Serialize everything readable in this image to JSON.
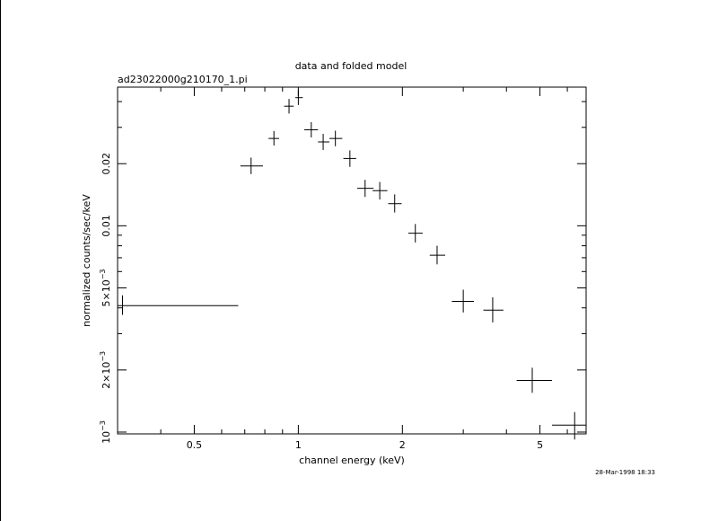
{
  "chart_data": {
    "type": "scatter",
    "title": "data and folded model",
    "subtitle": "ad23022000g210170_1.pi",
    "xlabel": "channel energy (keV)",
    "ylabel": "normalized counts/sec/keV",
    "x_scale": "log",
    "y_scale": "log",
    "xlim": [
      0.3,
      6.8
    ],
    "ylim": [
      0.00098,
      0.047
    ],
    "x_ticks": [
      {
        "value": 0.5,
        "label": "0.5"
      },
      {
        "value": 1,
        "label": "1"
      },
      {
        "value": 2,
        "label": "2"
      },
      {
        "value": 5,
        "label": "5"
      }
    ],
    "y_ticks": [
      {
        "value": 0.001,
        "base": "10",
        "exp": "−3"
      },
      {
        "value": 0.002,
        "base": "2×10",
        "exp": "−3"
      },
      {
        "value": 0.005,
        "base": "5×10",
        "exp": "−3"
      },
      {
        "value": 0.01,
        "label": "0.01"
      },
      {
        "value": 0.02,
        "label": "0.02"
      }
    ],
    "series": [
      {
        "points": [
          {
            "x": 0.31,
            "xlo": 0.3,
            "xhi": 0.67,
            "y": 0.0041,
            "ylo": 0.0037,
            "yhi": 0.0046
          },
          {
            "x": 0.73,
            "xlo": 0.68,
            "xhi": 0.79,
            "y": 0.0195,
            "ylo": 0.0178,
            "yhi": 0.0214
          },
          {
            "x": 0.85,
            "xlo": 0.82,
            "xhi": 0.88,
            "y": 0.0265,
            "ylo": 0.0245,
            "yhi": 0.0288
          },
          {
            "x": 0.94,
            "xlo": 0.91,
            "xhi": 0.97,
            "y": 0.038,
            "ylo": 0.035,
            "yhi": 0.0412
          },
          {
            "x": 1.0,
            "xlo": 0.98,
            "xhi": 1.03,
            "y": 0.0418,
            "ylo": 0.0385,
            "yhi": 0.0455
          },
          {
            "x": 1.09,
            "xlo": 1.04,
            "xhi": 1.14,
            "y": 0.0292,
            "ylo": 0.0268,
            "yhi": 0.0318
          },
          {
            "x": 1.18,
            "xlo": 1.14,
            "xhi": 1.23,
            "y": 0.0255,
            "ylo": 0.0233,
            "yhi": 0.0279
          },
          {
            "x": 1.28,
            "xlo": 1.23,
            "xhi": 1.34,
            "y": 0.0265,
            "ylo": 0.0243,
            "yhi": 0.0289
          },
          {
            "x": 1.41,
            "xlo": 1.35,
            "xhi": 1.47,
            "y": 0.0212,
            "ylo": 0.0193,
            "yhi": 0.0232
          },
          {
            "x": 1.56,
            "xlo": 1.48,
            "xhi": 1.65,
            "y": 0.0152,
            "ylo": 0.0138,
            "yhi": 0.0167
          },
          {
            "x": 1.72,
            "xlo": 1.64,
            "xhi": 1.81,
            "y": 0.0148,
            "ylo": 0.0134,
            "yhi": 0.0163
          },
          {
            "x": 1.9,
            "xlo": 1.82,
            "xhi": 1.99,
            "y": 0.0128,
            "ylo": 0.0116,
            "yhi": 0.0142
          },
          {
            "x": 2.18,
            "xlo": 2.08,
            "xhi": 2.29,
            "y": 0.0092,
            "ylo": 0.0083,
            "yhi": 0.0102
          },
          {
            "x": 2.52,
            "xlo": 2.4,
            "xhi": 2.66,
            "y": 0.0072,
            "ylo": 0.0065,
            "yhi": 0.008
          },
          {
            "x": 3.0,
            "xlo": 2.78,
            "xhi": 3.22,
            "y": 0.0043,
            "ylo": 0.0038,
            "yhi": 0.0049
          },
          {
            "x": 3.65,
            "xlo": 3.43,
            "xhi": 3.92,
            "y": 0.0039,
            "ylo": 0.0034,
            "yhi": 0.0045
          },
          {
            "x": 4.75,
            "xlo": 4.28,
            "xhi": 5.42,
            "y": 0.00178,
            "ylo": 0.00155,
            "yhi": 0.00205
          },
          {
            "x": 6.3,
            "xlo": 5.42,
            "xhi": 6.8,
            "y": 0.00108,
            "ylo": 0.00092,
            "yhi": 0.00125
          }
        ]
      }
    ],
    "timestamp": "28-Mar-1998 18:33"
  }
}
